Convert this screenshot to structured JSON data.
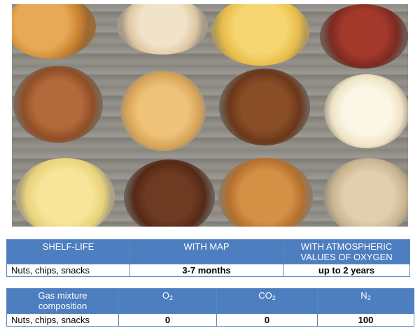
{
  "table1": {
    "headers": [
      "SHELF-LIFE",
      "WITH MAP",
      "WITH ATMOSPHERIC VALUES OF OXYGEN"
    ],
    "row": [
      "Nuts, chips, snacks",
      "3-7 months",
      "up to 2 years"
    ]
  },
  "table2": {
    "header_label": "Gas mixture composition",
    "o2_base": "O",
    "o2_sub": "2",
    "co2_base": "CO",
    "co2_sub": "2",
    "n2_base": "N",
    "n2_sub": "2",
    "row": [
      "Nuts, chips, snacks",
      "0",
      "0",
      "100"
    ]
  }
}
